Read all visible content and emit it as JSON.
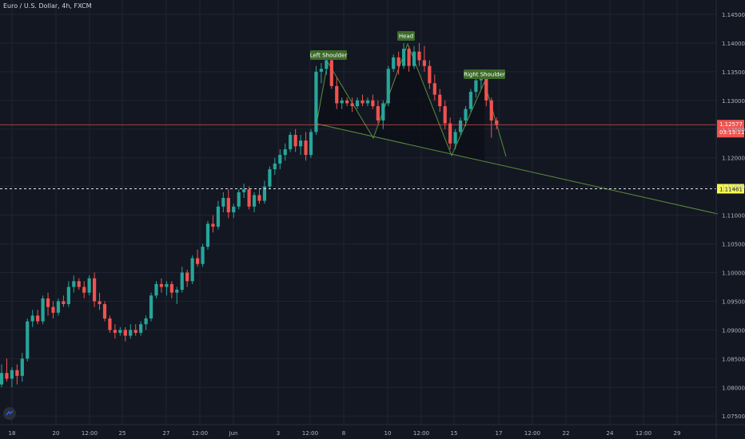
{
  "header": {
    "symbol_title": "Euro / U.S. Dollar, 4h, FXCM"
  },
  "colors": {
    "background": "#131722",
    "grid": "#1f2433",
    "up": "#26a69a",
    "down": "#ef5350",
    "pattern_line": "#5a8f3c",
    "pattern_fill": "#0c0f17",
    "label_bg": "#3d6b2a",
    "price_line": "#ef5350",
    "dashed_line": "#e6e6e6",
    "yellow_tag": "#f7f94e",
    "axis_text": "#b2b5be"
  },
  "chart_data": {
    "type": "candlestick",
    "y_axis": {
      "ticks": [
        "1.14500",
        "1.14000",
        "1.13500",
        "1.13000",
        "1.12500",
        "1.12000",
        "1.11500",
        "1.11000",
        "1.10500",
        "1.10000",
        "1.09500",
        "1.09000",
        "1.08500",
        "1.08000",
        "1.07500"
      ],
      "range": [
        1.0735,
        1.1475
      ]
    },
    "x_axis": {
      "labels": [
        "18",
        "20",
        "12:00",
        "25",
        "27",
        "12:00",
        "Jun",
        "3",
        "12:00",
        "8",
        "10",
        "12:00",
        "15",
        "17",
        "12:00",
        "22",
        "24",
        "12:00",
        "29"
      ]
    },
    "candles": [
      [
        1.0805,
        1.084,
        1.08,
        1.0825
      ],
      [
        1.0825,
        1.085,
        1.081,
        1.0815
      ],
      [
        1.0815,
        1.0835,
        1.08,
        1.083
      ],
      [
        1.083,
        1.084,
        1.0805,
        1.082
      ],
      [
        1.082,
        1.086,
        1.081,
        1.085
      ],
      [
        1.085,
        1.092,
        1.0845,
        1.0915
      ],
      [
        1.0915,
        1.0935,
        1.0905,
        1.0925
      ],
      [
        1.0925,
        1.0935,
        1.091,
        1.0915
      ],
      [
        1.0915,
        1.096,
        1.091,
        1.0955
      ],
      [
        1.0955,
        1.0965,
        1.0925,
        1.094
      ],
      [
        1.094,
        1.095,
        1.092,
        1.093
      ],
      [
        1.093,
        1.0955,
        1.0925,
        1.095
      ],
      [
        1.095,
        1.096,
        1.094,
        1.0945
      ],
      [
        1.0945,
        1.0985,
        1.094,
        1.0975
      ],
      [
        1.0975,
        1.0995,
        1.0965,
        1.0985
      ],
      [
        1.0985,
        1.099,
        1.097,
        1.0975
      ],
      [
        1.0975,
        1.0985,
        1.0955,
        1.0965
      ],
      [
        1.0965,
        1.0995,
        1.096,
        1.099
      ],
      [
        1.099,
        1.1,
        1.094,
        1.095
      ],
      [
        1.095,
        1.0965,
        1.0935,
        1.0945
      ],
      [
        1.0945,
        1.095,
        1.0915,
        1.092
      ],
      [
        1.092,
        1.0925,
        1.0895,
        1.09
      ],
      [
        1.09,
        1.091,
        1.0885,
        1.0895
      ],
      [
        1.0895,
        1.0905,
        1.089,
        1.09
      ],
      [
        1.09,
        1.0905,
        1.088,
        1.089
      ],
      [
        1.089,
        1.091,
        1.0885,
        1.09
      ],
      [
        1.09,
        1.091,
        1.089,
        1.0895
      ],
      [
        1.0895,
        1.0915,
        1.089,
        1.091
      ],
      [
        1.091,
        1.0925,
        1.09,
        1.092
      ],
      [
        1.092,
        1.0965,
        1.0915,
        1.096
      ],
      [
        1.096,
        1.0985,
        1.0955,
        1.098
      ],
      [
        1.098,
        1.099,
        1.0965,
        1.0975
      ],
      [
        1.0975,
        1.0985,
        1.096,
        1.098
      ],
      [
        1.098,
        1.0985,
        1.0955,
        1.0965
      ],
      [
        1.0965,
        1.0975,
        1.0945,
        1.097
      ],
      [
        1.097,
        1.101,
        1.0965,
        1.1
      ],
      [
        1.1,
        1.1005,
        1.0975,
        1.0985
      ],
      [
        1.0985,
        1.103,
        1.098,
        1.1025
      ],
      [
        1.1025,
        1.104,
        1.101,
        1.1015
      ],
      [
        1.1015,
        1.105,
        1.101,
        1.1045
      ],
      [
        1.1045,
        1.109,
        1.104,
        1.1085
      ],
      [
        1.1085,
        1.11,
        1.107,
        1.108
      ],
      [
        1.108,
        1.1125,
        1.1075,
        1.1115
      ],
      [
        1.1115,
        1.114,
        1.1105,
        1.113
      ],
      [
        1.113,
        1.1145,
        1.1095,
        1.1105
      ],
      [
        1.1105,
        1.112,
        1.1095,
        1.1115
      ],
      [
        1.1115,
        1.1145,
        1.111,
        1.114
      ],
      [
        1.114,
        1.1155,
        1.113,
        1.1145
      ],
      [
        1.1145,
        1.115,
        1.111,
        1.1115
      ],
      [
        1.1115,
        1.114,
        1.1105,
        1.1135
      ],
      [
        1.1135,
        1.1145,
        1.112,
        1.1125
      ],
      [
        1.1125,
        1.116,
        1.112,
        1.115
      ],
      [
        1.115,
        1.1185,
        1.1145,
        1.118
      ],
      [
        1.118,
        1.12,
        1.117,
        1.119
      ],
      [
        1.119,
        1.1215,
        1.118,
        1.1205
      ],
      [
        1.1205,
        1.1225,
        1.1195,
        1.1215
      ],
      [
        1.1215,
        1.1245,
        1.121,
        1.124
      ],
      [
        1.124,
        1.125,
        1.121,
        1.122
      ],
      [
        1.122,
        1.124,
        1.1205,
        1.123
      ],
      [
        1.123,
        1.1245,
        1.1195,
        1.1205
      ],
      [
        1.1205,
        1.125,
        1.12,
        1.1245
      ],
      [
        1.1245,
        1.136,
        1.124,
        1.135
      ],
      [
        1.135,
        1.1365,
        1.133,
        1.1355
      ],
      [
        1.1355,
        1.1385,
        1.1345,
        1.137
      ],
      [
        1.137,
        1.1375,
        1.132,
        1.1325
      ],
      [
        1.1325,
        1.134,
        1.1285,
        1.1295
      ],
      [
        1.1295,
        1.1305,
        1.1285,
        1.13
      ],
      [
        1.13,
        1.1305,
        1.129,
        1.1295
      ],
      [
        1.1295,
        1.1305,
        1.128,
        1.129
      ],
      [
        1.129,
        1.1305,
        1.1285,
        1.13
      ],
      [
        1.13,
        1.131,
        1.129,
        1.1295
      ],
      [
        1.1295,
        1.1305,
        1.129,
        1.13
      ],
      [
        1.13,
        1.131,
        1.1285,
        1.129
      ],
      [
        1.129,
        1.13,
        1.126,
        1.1265
      ],
      [
        1.1265,
        1.13,
        1.125,
        1.1295
      ],
      [
        1.1295,
        1.136,
        1.129,
        1.1355
      ],
      [
        1.1355,
        1.138,
        1.135,
        1.1375
      ],
      [
        1.1375,
        1.1385,
        1.1345,
        1.136
      ],
      [
        1.136,
        1.14,
        1.1355,
        1.139
      ],
      [
        1.139,
        1.1395,
        1.135,
        1.136
      ],
      [
        1.136,
        1.1395,
        1.1355,
        1.1385
      ],
      [
        1.1385,
        1.14,
        1.136,
        1.137
      ],
      [
        1.137,
        1.1395,
        1.135,
        1.136
      ],
      [
        1.136,
        1.137,
        1.132,
        1.133
      ],
      [
        1.133,
        1.1345,
        1.13,
        1.131
      ],
      [
        1.131,
        1.132,
        1.128,
        1.129
      ],
      [
        1.129,
        1.13,
        1.125,
        1.126
      ],
      [
        1.126,
        1.127,
        1.1215,
        1.1225
      ],
      [
        1.1225,
        1.125,
        1.1215,
        1.1245
      ],
      [
        1.1245,
        1.127,
        1.124,
        1.1265
      ],
      [
        1.1265,
        1.129,
        1.1255,
        1.1285
      ],
      [
        1.1285,
        1.132,
        1.128,
        1.1315
      ],
      [
        1.1315,
        1.134,
        1.1305,
        1.1335
      ],
      [
        1.1335,
        1.135,
        1.132,
        1.134
      ],
      [
        1.134,
        1.135,
        1.129,
        1.13
      ],
      [
        1.13,
        1.1305,
        1.1235,
        1.1265
      ],
      [
        1.1265,
        1.127,
        1.125,
        1.1258
      ]
    ],
    "price_lines": [
      {
        "value": 1.12577,
        "label": "1.12577",
        "sub_label": "03:13:11",
        "style": "solid"
      },
      {
        "value": 1.11461,
        "label": "1.11461",
        "style": "dashed"
      }
    ],
    "annotations": [
      {
        "text": "Left Shoulder"
      },
      {
        "text": "Head"
      },
      {
        "text": "Right Shoulder"
      }
    ]
  }
}
